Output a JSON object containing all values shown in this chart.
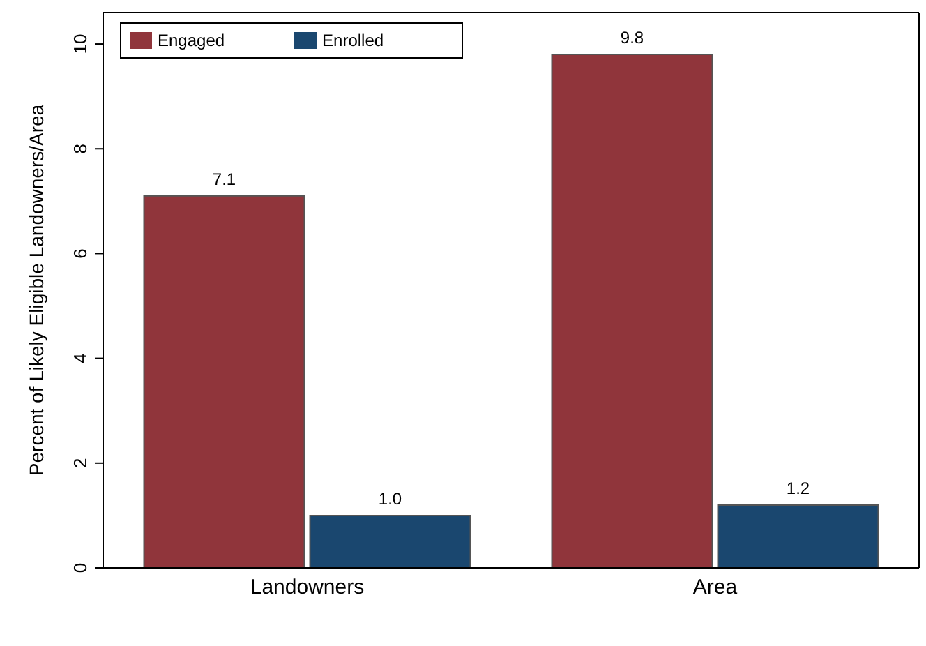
{
  "chart_data": {
    "type": "bar",
    "ylabel": "Percent of Likely Eligible Landowners/Area",
    "categories": [
      "Landowners",
      "Area"
    ],
    "series": [
      {
        "name": "Engaged",
        "color": "#90353b",
        "values": [
          7.1,
          9.8
        ],
        "value_labels": [
          "7.1",
          "9.8"
        ]
      },
      {
        "name": "Enrolled",
        "color": "#1a476f",
        "values": [
          1.0,
          1.2
        ],
        "value_labels": [
          "1.0",
          "1.2"
        ]
      }
    ],
    "ylim": [
      0,
      10.6
    ],
    "yticks": [
      0,
      2,
      4,
      6,
      8,
      10
    ],
    "grid": false,
    "legend": "top left"
  }
}
